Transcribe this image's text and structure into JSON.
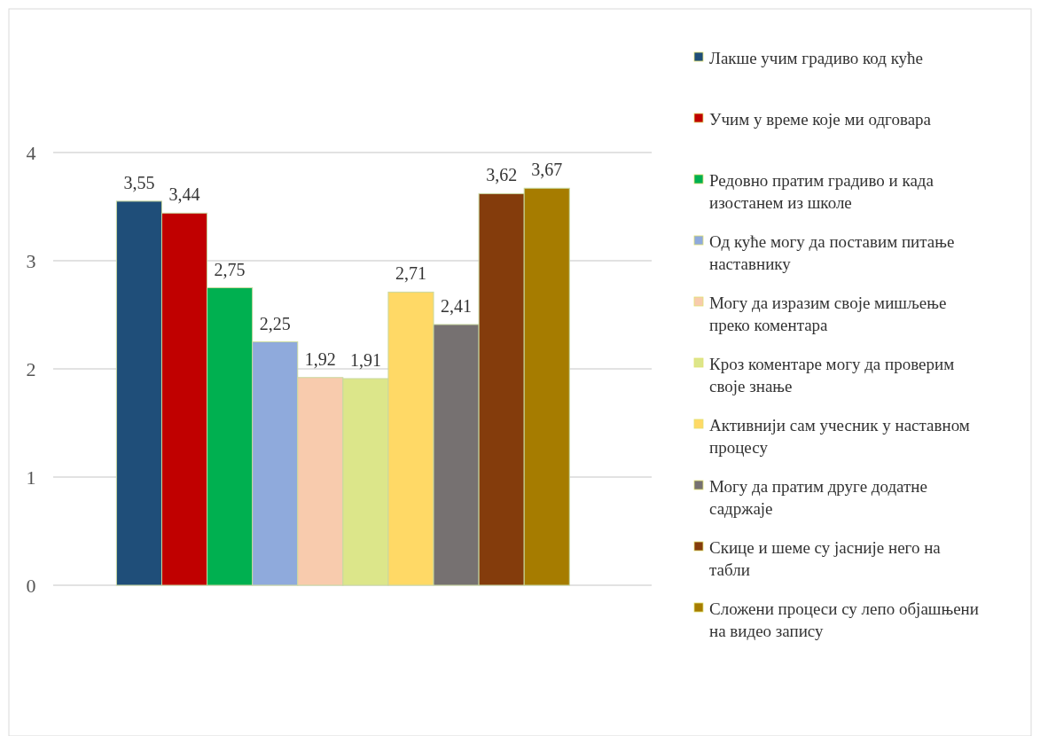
{
  "chart_data": {
    "type": "bar",
    "categories": [
      null
    ],
    "ylim": [
      0,
      4
    ],
    "yticks": [
      0,
      1,
      2,
      3,
      4
    ],
    "grid": "y",
    "legend": "right",
    "series": [
      {
        "name": "Лакше учим градиво код куће",
        "color": "#1f4e79",
        "values": [
          3.55
        ],
        "value_labels": [
          "3,55"
        ]
      },
      {
        "name": "Учим у време које ми одговара",
        "color": "#c00000",
        "values": [
          3.44
        ],
        "value_labels": [
          "3,44"
        ]
      },
      {
        "name": "Редовно пратим градиво и када изостанем из школе",
        "color": "#00b050",
        "values": [
          2.75
        ],
        "value_labels": [
          "2,75"
        ]
      },
      {
        "name": "Од куће могу да поставим питање наставнику",
        "color": "#8faadc",
        "values": [
          2.25
        ],
        "value_labels": [
          "2,25"
        ]
      },
      {
        "name": "Могу да изразим своје мишљење преко коментара",
        "color": "#f8cbad",
        "values": [
          1.92
        ],
        "value_labels": [
          "1,92"
        ]
      },
      {
        "name": "Кроз коментаре могу да проверим своје знање",
        "color": "#dce68a",
        "values": [
          1.91
        ],
        "value_labels": [
          "1,91"
        ]
      },
      {
        "name": "Активнији сам учесник у наставном процесу",
        "color": "#ffd966",
        "values": [
          2.71
        ],
        "value_labels": [
          "2,71"
        ]
      },
      {
        "name": "Могу да пратим друге додатне садржаје",
        "color": "#767171",
        "values": [
          2.41
        ],
        "value_labels": [
          "2,41"
        ]
      },
      {
        "name": "Скице и шеме су јасније него на табли",
        "color": "#843c0c",
        "values": [
          3.62
        ],
        "value_labels": [
          "3,62"
        ]
      },
      {
        "name": "Сложени процеси су лепо објашњени на видео запису",
        "color": "#a67c00",
        "values": [
          3.67
        ],
        "value_labels": [
          "3,67"
        ]
      }
    ]
  }
}
